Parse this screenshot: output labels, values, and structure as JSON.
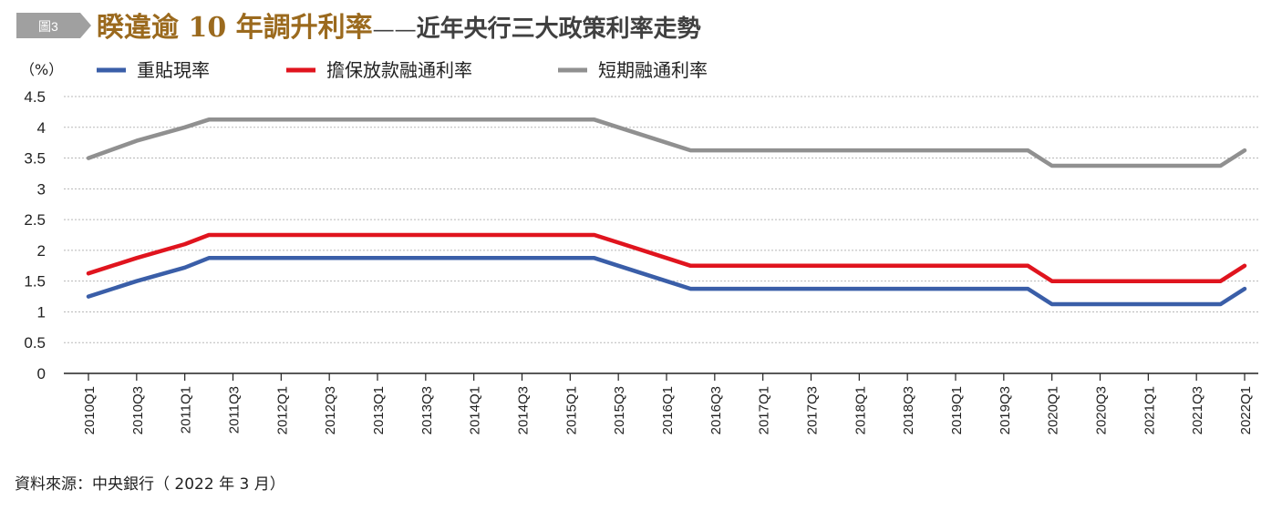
{
  "figure_tag": "圖3",
  "title": "睽違逾 10 年調升利率",
  "title_dash": "——",
  "subtitle": "近年央行三大政策利率走勢",
  "source": "資料來源：中央銀行（ 2022 年 3 月）",
  "colors": {
    "tag_bg": "#a0a0a0",
    "title": "#9b6a1e",
    "subtitle": "#404040",
    "grid": "#b8b8b8"
  },
  "chart_data": {
    "type": "line",
    "ylabel": "（%）",
    "xlabel": "",
    "ylim": [
      0,
      4.5
    ],
    "yticks": [
      "0",
      "0.5",
      "1",
      "1.5",
      "2",
      "2.5",
      "3",
      "3.5",
      "4",
      "4.5"
    ],
    "x": [
      "2010Q1",
      "2010Q3",
      "2011Q1",
      "2011Q3",
      "2012Q1",
      "2012Q3",
      "2013Q1",
      "2013Q3",
      "2014Q1",
      "2014Q3",
      "2015Q1",
      "2015Q3",
      "2016Q1",
      "2016Q3",
      "2017Q1",
      "2017Q3",
      "2018Q1",
      "2018Q3",
      "2019Q1",
      "2019Q3",
      "2020Q1",
      "2020Q3",
      "2021Q1",
      "2021Q3",
      "2022Q1"
    ],
    "grid": "horizontal dashed",
    "legend_position": "top",
    "series": [
      {
        "name": "重貼現率",
        "color": "#3a5ea8",
        "points": [
          [
            0,
            1.25
          ],
          [
            1,
            1.5
          ],
          [
            2,
            1.72
          ],
          [
            2.5,
            1.875
          ],
          [
            10.5,
            1.875
          ],
          [
            11,
            1.75
          ],
          [
            12,
            1.5
          ],
          [
            12.5,
            1.375
          ],
          [
            19.5,
            1.375
          ],
          [
            20,
            1.125
          ],
          [
            23.5,
            1.125
          ],
          [
            24,
            1.375
          ]
        ]
      },
      {
        "name": "擔保放款融通利率",
        "color": "#e0141e",
        "points": [
          [
            0,
            1.625
          ],
          [
            1,
            1.875
          ],
          [
            2,
            2.1
          ],
          [
            2.5,
            2.25
          ],
          [
            10.5,
            2.25
          ],
          [
            11,
            2.125
          ],
          [
            12,
            1.875
          ],
          [
            12.5,
            1.75
          ],
          [
            19.5,
            1.75
          ],
          [
            20,
            1.5
          ],
          [
            23.5,
            1.5
          ],
          [
            24,
            1.75
          ]
        ]
      },
      {
        "name": "短期融通利率",
        "color": "#909090",
        "points": [
          [
            0,
            3.5
          ],
          [
            1,
            3.78
          ],
          [
            2,
            4.0
          ],
          [
            2.5,
            4.125
          ],
          [
            10.5,
            4.125
          ],
          [
            11,
            4.0
          ],
          [
            12,
            3.75
          ],
          [
            12.5,
            3.625
          ],
          [
            19.5,
            3.625
          ],
          [
            20,
            3.375
          ],
          [
            23.5,
            3.375
          ],
          [
            24,
            3.625
          ]
        ]
      }
    ]
  }
}
